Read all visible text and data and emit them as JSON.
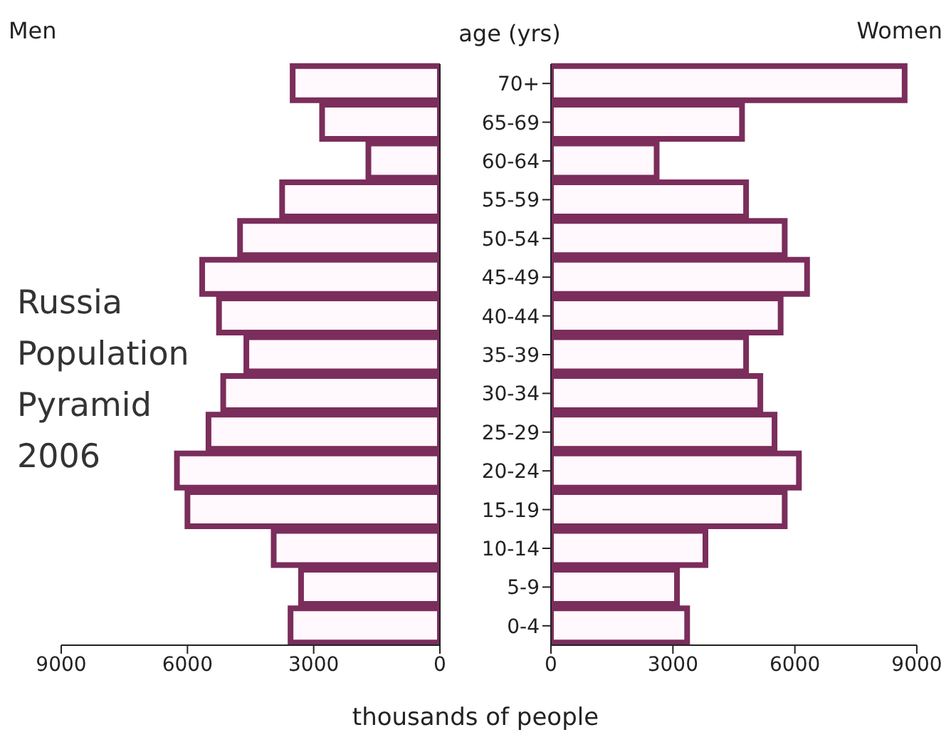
{
  "chart_data": [
    {
      "type": "bar",
      "orientation": "horizontal",
      "title": "Russia Population Pyramid 2006",
      "series": [
        {
          "name": "Men",
          "color": "#7b2d5b",
          "values": [
            3500,
            2800,
            1700,
            3750,
            4750,
            5650,
            5250,
            4600,
            5150,
            5500,
            6250,
            6000,
            3950,
            3300,
            3550
          ]
        }
      ],
      "xlim": [
        9000,
        0
      ],
      "xticks": [
        9000,
        6000,
        3000,
        0
      ],
      "tick_labels": "x",
      "grid": false,
      "legend": false
    },
    {
      "type": "bar",
      "orientation": "horizontal",
      "ylabel": "age (yrs)",
      "xlabel": "thousands of people",
      "categories": [
        "70+",
        "65-69",
        "60-64",
        "55-59",
        "50-54",
        "45-49",
        "40-44",
        "35-39",
        "30-34",
        "25-29",
        "20-24",
        "15-19",
        "10-14",
        "5-9",
        "0-4"
      ],
      "series": [
        {
          "name": "Women",
          "color": "#7b2d5b",
          "values": [
            8700,
            4700,
            2600,
            4800,
            5750,
            6300,
            5650,
            4800,
            5150,
            5500,
            6100,
            5750,
            3800,
            3100,
            3350
          ]
        }
      ],
      "xlim": [
        0,
        9000
      ],
      "xticks": [
        0,
        3000,
        6000,
        9000
      ],
      "grid": false,
      "legend": false
    }
  ]
}
